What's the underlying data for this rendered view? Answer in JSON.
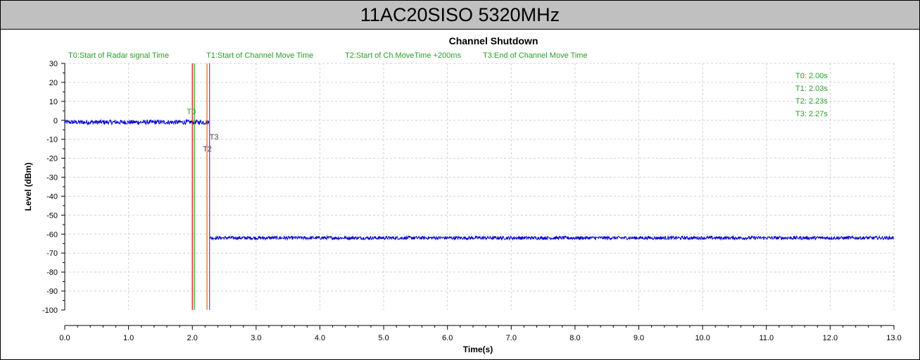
{
  "banner": {
    "title": "11AC20SISO 5320MHz"
  },
  "chart_data": {
    "type": "line",
    "title": "Channel Shutdown",
    "xlabel": "Time(s)",
    "ylabel": "Level (dBm)",
    "xlim": [
      0,
      13
    ],
    "ylim": [
      -100,
      30
    ],
    "x_ticks": [
      "0.0",
      "1.0",
      "2.0",
      "3.0",
      "4.0",
      "5.0",
      "6.0",
      "7.0",
      "8.0",
      "9.0",
      "10.0",
      "11.0",
      "12.0",
      "13.0"
    ],
    "y_ticks": [
      "30",
      "20",
      "10",
      "0",
      "-10",
      "-20",
      "-30",
      "-40",
      "-50",
      "-60",
      "-70",
      "-80",
      "-90",
      "-100"
    ],
    "grid": true,
    "legend_texts": [
      "T0:Start of Radar signal Time",
      "T1:Start of Channel Move Time",
      "T2:Start of Ch.MoveTime +200ms",
      "T3:End of Channel Move Time"
    ],
    "annotations": [
      "T0: 2.00s",
      "T1: 2.03s",
      "T2: 2.23s",
      "T3: 2.27s"
    ],
    "markers": [
      {
        "label": "T0",
        "x": 2.0,
        "color": "#cc2222"
      },
      {
        "label": "T1",
        "x": 2.03,
        "color": "#22aa22"
      },
      {
        "label": "T2",
        "x": 2.23,
        "color": "#e07020"
      },
      {
        "label": "T3",
        "x": 2.27,
        "color": "#cc22cc"
      }
    ],
    "series": [
      {
        "color": "#0000cc",
        "segments": [
          {
            "x": [
              0.0,
              2.27
            ],
            "level": -1.0,
            "noise": 1.2
          },
          {
            "x": [
              2.27,
              13.0
            ],
            "level": -62.0,
            "noise": 0.9
          }
        ]
      }
    ]
  }
}
